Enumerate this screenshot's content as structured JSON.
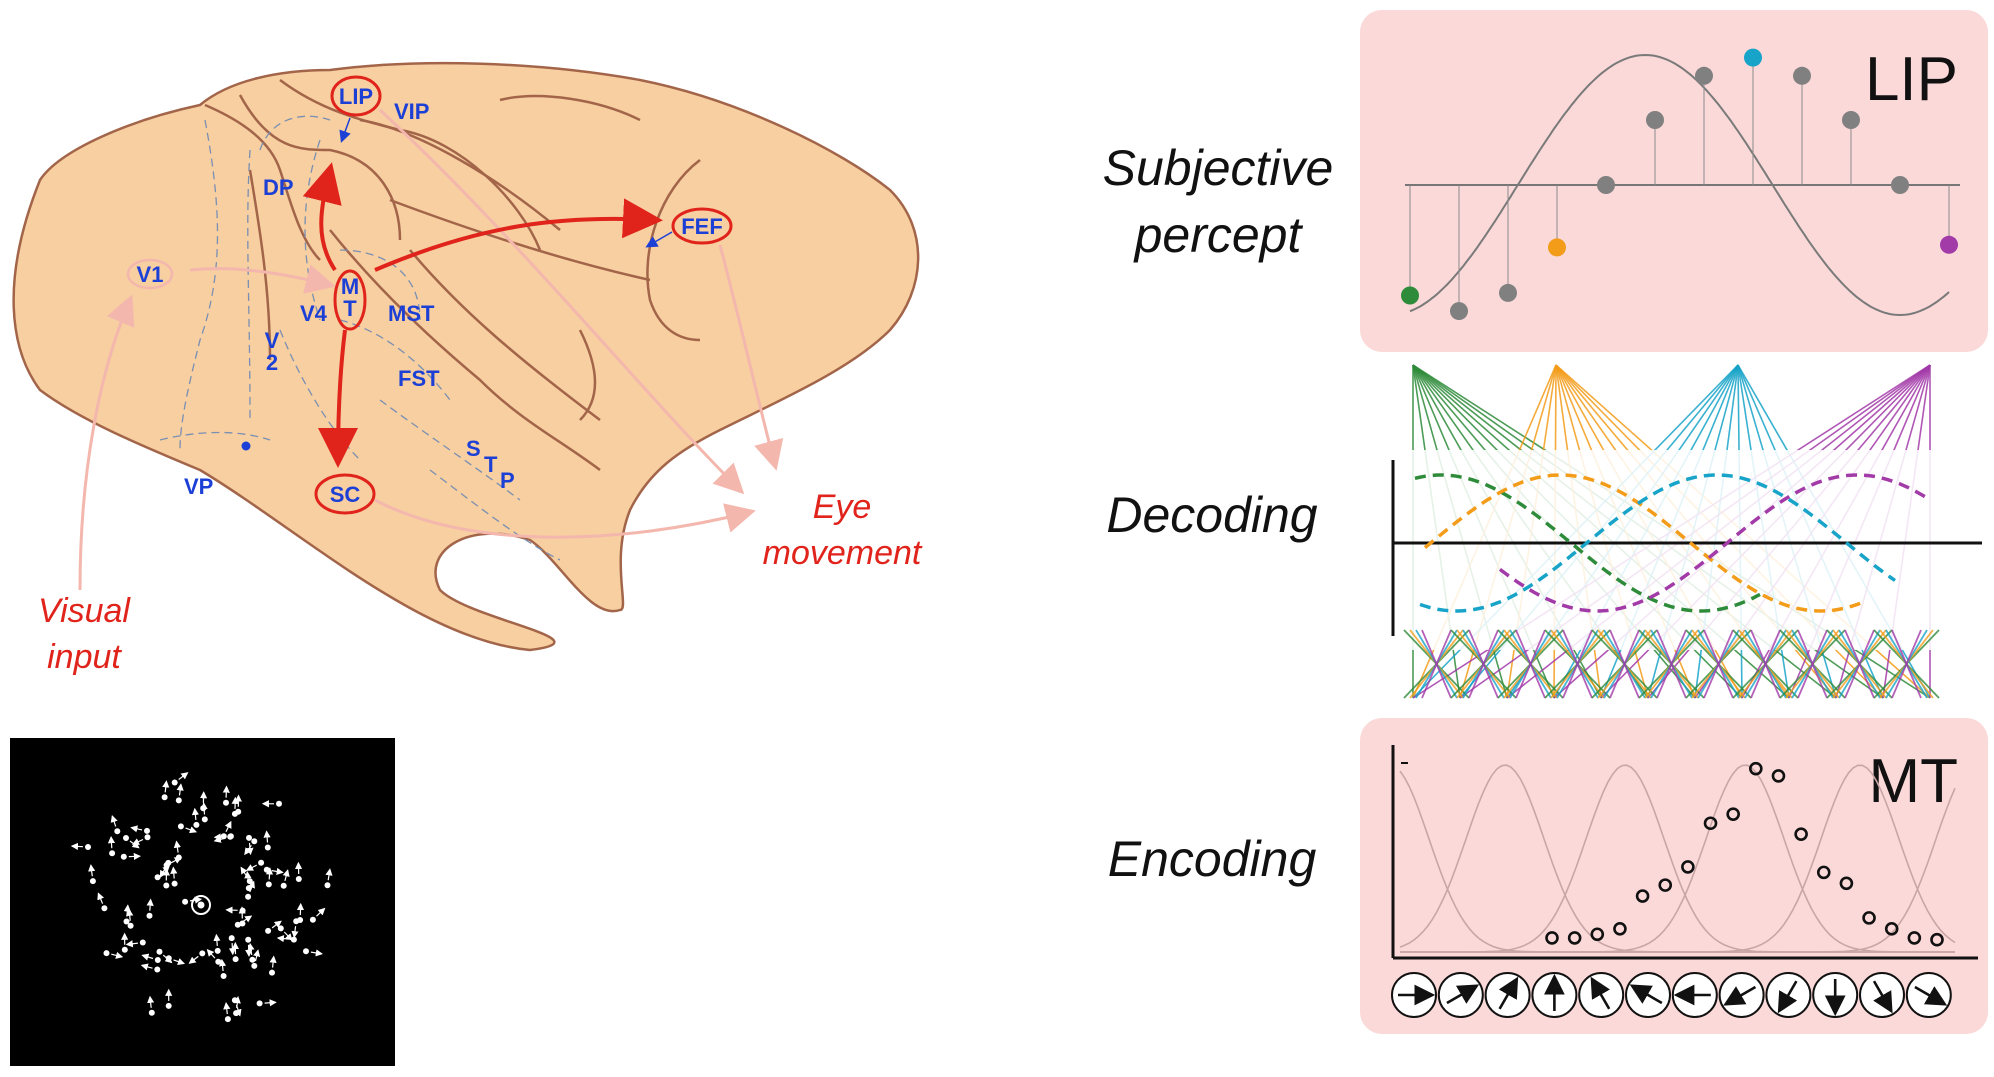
{
  "brain": {
    "areas": {
      "lip": "LIP",
      "vip": "VIP",
      "dp": "DP",
      "fef": "FEF",
      "v1": "V1",
      "mt_m": "M",
      "mt_t": "T",
      "v4": "V4",
      "mst": "MST",
      "v2_v": "V",
      "v2_2": "2",
      "fst": "FST",
      "stp_s": "S",
      "stp_t": "T",
      "stp_p": "P",
      "vp": "VP",
      "sc": "SC"
    },
    "visual_input": [
      "Visual",
      "input"
    ],
    "eye_movement": [
      "Eye",
      "movement"
    ]
  },
  "right_panel": {
    "labels": {
      "subjective_percept": [
        "Subjective",
        "percept"
      ],
      "decoding": "Decoding",
      "encoding": "Encoding"
    },
    "lip_title": "LIP",
    "mt_title": "MT",
    "lip_points": [
      {
        "v": -0.85,
        "color": "#2e8b3a"
      },
      {
        "v": -0.97,
        "color": "#808080"
      },
      {
        "v": -0.83,
        "color": "#808080"
      },
      {
        "v": -0.48,
        "color": "#f39c1a"
      },
      {
        "v": 0.0,
        "color": "#808080"
      },
      {
        "v": 0.5,
        "color": "#808080"
      },
      {
        "v": 0.84,
        "color": "#808080"
      },
      {
        "v": 0.98,
        "color": "#18a3c8"
      },
      {
        "v": 0.84,
        "color": "#808080"
      },
      {
        "v": 0.5,
        "color": "#808080"
      },
      {
        "v": 0.0,
        "color": "#808080"
      },
      {
        "v": -0.46,
        "color": "#a23aa8"
      }
    ],
    "mt_responses": [
      0.05,
      0.05,
      0.07,
      0.1,
      0.28,
      0.34,
      0.44,
      0.68,
      0.73,
      0.98,
      0.94,
      0.62,
      0.41,
      0.35,
      0.16,
      0.1,
      0.05,
      0.04
    ],
    "mt_directions": [
      0,
      30,
      60,
      90,
      120,
      150,
      180,
      210,
      240,
      270,
      300,
      330
    ],
    "decoder_colors": [
      "#2e8b3a",
      "#f39c1a",
      "#18a3c8",
      "#a23aa8"
    ]
  }
}
